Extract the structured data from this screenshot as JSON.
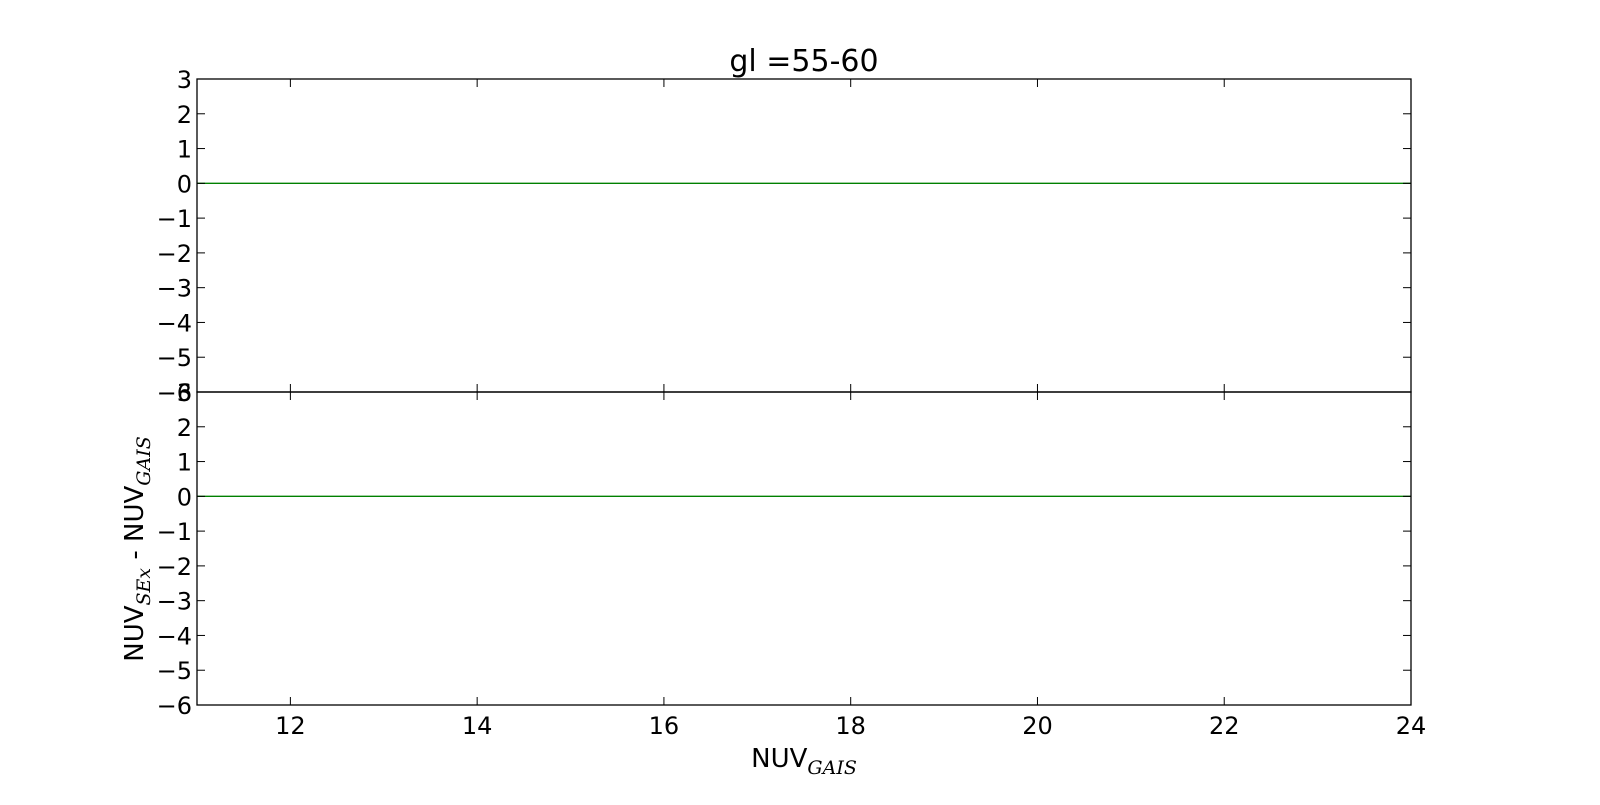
{
  "chart_data": [
    {
      "type": "line",
      "panel": "top",
      "title": "gl =55-60",
      "xlim": [
        11,
        24
      ],
      "ylim": [
        -6,
        3
      ],
      "y_ticks": [
        3,
        2,
        1,
        0,
        -1,
        -2,
        -3,
        -4,
        -5,
        -6
      ],
      "y_tick_labels": [
        "3",
        "2",
        "1",
        "0",
        "−1",
        "−2",
        "−3",
        "−4",
        "−5",
        "−6"
      ],
      "x_ticks": [
        12,
        14,
        16,
        18,
        20,
        22,
        24
      ],
      "show_x_tick_labels": false,
      "reference_line": {
        "y": 0,
        "x": [
          11,
          24
        ],
        "color": "#008000"
      },
      "series": [],
      "grid": false
    },
    {
      "type": "line",
      "panel": "bottom",
      "xlim": [
        11,
        24
      ],
      "ylim": [
        -6,
        3
      ],
      "y_ticks": [
        3,
        2,
        1,
        0,
        -1,
        -2,
        -3,
        -4,
        -5,
        -6
      ],
      "y_tick_labels": [
        "3",
        "2",
        "1",
        "0",
        "−1",
        "−2",
        "−3",
        "−4",
        "−5",
        "−6"
      ],
      "x_ticks": [
        12,
        14,
        16,
        18,
        20,
        22,
        24
      ],
      "x_tick_labels": [
        "12",
        "14",
        "16",
        "18",
        "20",
        "22",
        "24"
      ],
      "show_x_tick_labels": true,
      "reference_line": {
        "y": 0,
        "x": [
          11,
          24
        ],
        "color": "#008000"
      },
      "series": [],
      "grid": false
    }
  ],
  "ylabel": {
    "main1": "NUV",
    "sub1": "SEx",
    "mid": " - NUV",
    "sub2": "GAIS"
  },
  "xlabel": {
    "main": "NUV",
    "sub": "GAIS"
  },
  "colors": {
    "axes": "#000000",
    "reference_line": "#008000",
    "background": "#ffffff"
  }
}
